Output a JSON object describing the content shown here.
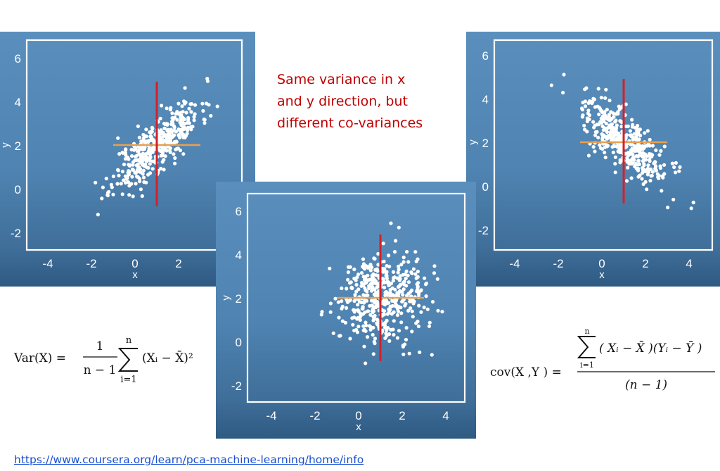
{
  "caption": {
    "line1": "Same variance in x",
    "line2": "and y direction, but",
    "line3": "different co-variances"
  },
  "source_link": "https://www.coursera.org/learn/pca-machine-learning/home/info",
  "formulas": {
    "variance": {
      "lhs": "Var(X) =",
      "numerator": "1",
      "denominator": "n − 1",
      "sum_top": "n",
      "sum_bottom": "i=1",
      "term": "(Xᵢ − X̄)²"
    },
    "covariance": {
      "lhs": "cov(X ,Y ) =",
      "sum_top": "n",
      "sum_bottom": "i=1",
      "numerator": "( Xᵢ − X̄ )(Yᵢ − Ȳ )",
      "denominator": "(n − 1)"
    }
  },
  "colors": {
    "panel_background": "#4f83b1",
    "point": "#ffffff",
    "vertical_line": "#d42027",
    "horizontal_line": "#e8a050",
    "caption": "#c00000",
    "link": "#1a4fd1"
  },
  "chart_data": [
    {
      "type": "scatter",
      "id": "positive-covariance",
      "xlabel": "x",
      "ylabel": "y",
      "xlim": [
        -5,
        5
      ],
      "ylim": [
        -2.9,
        6.9
      ],
      "xticks": [
        -4,
        -2,
        0,
        2
      ],
      "yticks": [
        -2,
        0,
        2,
        4,
        6
      ],
      "center": [
        1,
        2
      ],
      "vertical_line": {
        "x": 1,
        "y_range": [
          -0.8,
          4.9
        ]
      },
      "horizontal_line": {
        "y": 2,
        "x_range": [
          -1,
          3
        ]
      },
      "covariance_sign": "positive",
      "n_points": 420
    },
    {
      "type": "scatter",
      "id": "zero-covariance",
      "xlabel": "x",
      "ylabel": "y",
      "xlim": [
        -5,
        5
      ],
      "ylim": [
        -2.9,
        6.9
      ],
      "xticks": [
        -4,
        -2,
        0,
        2,
        4
      ],
      "yticks": [
        -2,
        0,
        2,
        4,
        6
      ],
      "center": [
        1,
        2
      ],
      "vertical_line": {
        "x": 1,
        "y_range": [
          -0.9,
          4.9
        ]
      },
      "horizontal_line": {
        "y": 2,
        "x_range": [
          -1,
          3
        ]
      },
      "covariance_sign": "zero",
      "n_points": 460
    },
    {
      "type": "scatter",
      "id": "negative-covariance",
      "xlabel": "x",
      "ylabel": "y",
      "xlim": [
        -5,
        5
      ],
      "ylim": [
        -2.9,
        6.9
      ],
      "xticks": [
        -4,
        -2,
        0,
        2,
        4
      ],
      "yticks": [
        -2,
        0,
        2,
        4,
        6
      ],
      "center": [
        1,
        2
      ],
      "vertical_line": {
        "x": 1,
        "y_range": [
          -0.8,
          4.9
        ]
      },
      "horizontal_line": {
        "y": 2,
        "x_range": [
          -1,
          3
        ]
      },
      "covariance_sign": "negative",
      "n_points": 420
    }
  ]
}
